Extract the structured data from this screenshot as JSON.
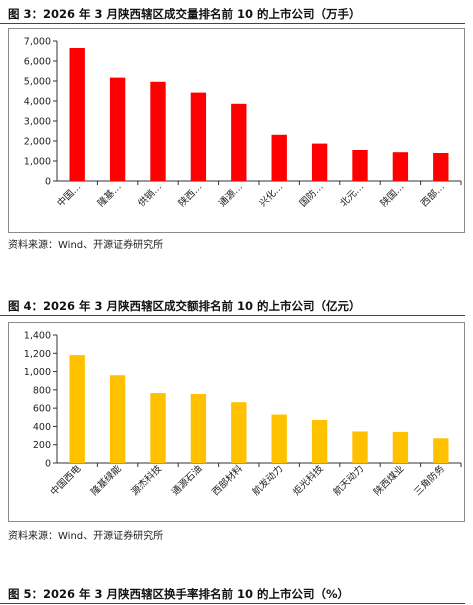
{
  "figures": [
    {
      "title": "图 3：2026 年 3 月陕西辖区成交量排名前 10 的上市公司（万手）"
    },
    {
      "title": "图 4：2026 年 3 月陕西辖区成交额排名前 10 的上市公司（亿元）"
    },
    {
      "title": "图 5：2026 年 3 月陕西辖区换手率排名前 10 的上市公司（%）"
    }
  ],
  "sources": [
    "资料来源：Wind、开源证券研究所",
    "资料来源：Wind、开源证券研究所"
  ],
  "colors": {
    "fig3_bar": "#ff0000",
    "fig4_bar": "#ffc000",
    "title_rule": "#a11d21"
  },
  "chart_data": [
    {
      "type": "bar",
      "title": "",
      "categories": [
        "中国…",
        "隆基…",
        "供销…",
        "陕西…",
        "通源…",
        "兴化…",
        "国防…",
        "北元…",
        "陕国…",
        "西部…"
      ],
      "values": [
        6650,
        5170,
        4960,
        4420,
        3860,
        2310,
        1870,
        1550,
        1440,
        1400
      ],
      "ylim": [
        0,
        7000
      ],
      "yticks": [
        "0",
        "1,000",
        "2,000",
        "3,000",
        "4,000",
        "5,000",
        "6,000",
        "7,000"
      ],
      "grid": false
    },
    {
      "type": "bar",
      "title": "",
      "categories": [
        "中国西电",
        "隆基绿能",
        "源杰科技",
        "通源石油",
        "西部材料",
        "航发动力",
        "炬光科技",
        "航天动力",
        "陕西煤业",
        "三角防务"
      ],
      "values": [
        1180,
        960,
        765,
        755,
        665,
        530,
        470,
        345,
        340,
        270
      ],
      "ylim": [
        0,
        1400
      ],
      "yticks": [
        "0",
        "200",
        "400",
        "600",
        "800",
        "1,000",
        "1,200",
        "1,400"
      ],
      "grid": false
    }
  ]
}
